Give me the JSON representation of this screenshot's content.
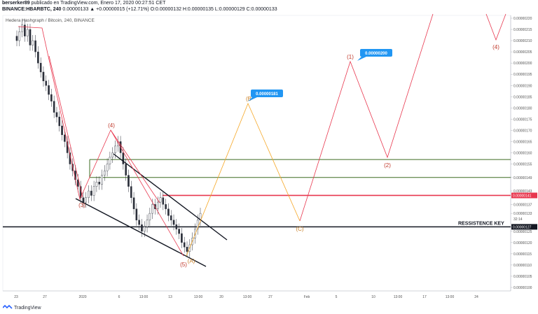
{
  "header": {
    "line1_user": "berserker89",
    "line1_rest": " publicado en TradingView.com, Enero 17, 2020 00:27:51 CET",
    "symbol": "BINANCE:HBARBTC, 240",
    "ohlc": "0.00000133 ▲ +0.00000015 (+12.71%) O:0.00000132 H:0.00000135 L:0.00000129 C:0.00000133"
  },
  "chart_title": "Hedera Hashgraph / Bitcoin, 240, BINANCE",
  "logo": {
    "text": "TradingView",
    "icon": "tradingview-logo-icon"
  },
  "colors": {
    "candle": "#2a2e39",
    "red": "#e8384f",
    "orange": "#f5a623",
    "green": "#3d6b21",
    "marker": "#2196f3",
    "axis_text": "#555",
    "wave_label_red": "#c0392b",
    "wave_label_orange": "#c9822b"
  },
  "chart_data": {
    "type": "line",
    "price_axis": {
      "ticks": [
        "0.00000220",
        "0.00000215",
        "0.00000210",
        "0.00000205",
        "0.00000200",
        "0.00000195",
        "0.00000190",
        "0.00000185",
        "0.00000180",
        "0.00000175",
        "0.00000170",
        "0.00000165",
        "0.00000160",
        "0.00000155",
        "0.00000149",
        "0.00000143",
        "0.00000137",
        "0.00000133",
        "0.00000125",
        "0.00000120",
        "0.00000115",
        "0.00000110",
        "0.00000105",
        "0.00000100"
      ],
      "extra_labels": [
        "32:14"
      ],
      "highlighted": [
        {
          "text": "0.00000141",
          "color": "#e8384f"
        },
        {
          "text": "0.00000127",
          "color": "#131722"
        }
      ]
    },
    "time_axis": {
      "ticks": [
        "23",
        "27",
        "2020",
        "6",
        "13:00",
        "13",
        "13:00",
        "20",
        "13:00",
        "27",
        "Feb",
        "5",
        "10",
        "13:00",
        "17",
        "13:00",
        "24"
      ]
    },
    "candles_close": [
      2.1e-06,
      2.14e-06,
      2.17e-06,
      2.12e-06,
      2.15e-06,
      2.08e-06,
      2.1e-06,
      2.05e-06,
      2e-06,
      1.96e-06,
      1.92e-06,
      1.9e-06,
      1.86e-06,
      1.83e-06,
      1.78e-06,
      1.76e-06,
      1.72e-06,
      1.68e-06,
      1.65e-06,
      1.6e-06,
      1.55e-06,
      1.52e-06,
      1.48e-06,
      1.45e-06,
      1.4e-06,
      1.38e-06,
      1.4e-06,
      1.43e-06,
      1.41e-06,
      1.45e-06,
      1.47e-06,
      1.46e-06,
      1.5e-06,
      1.52e-06,
      1.55e-06,
      1.58e-06,
      1.6e-06,
      1.63e-06,
      1.65e-06,
      1.6e-06,
      1.55e-06,
      1.5e-06,
      1.45e-06,
      1.4e-06,
      1.35e-06,
      1.3e-06,
      1.28e-06,
      1.25e-06,
      1.27e-06,
      1.3e-06,
      1.33e-06,
      1.37e-06,
      1.35e-06,
      1.38e-06,
      1.4e-06,
      1.37e-06,
      1.35e-06,
      1.32e-06,
      1.3e-06,
      1.28e-06,
      1.26e-06,
      1.24e-06,
      1.2e-06,
      1.18e-06,
      1.16e-06,
      1.19e-06,
      1.22e-06,
      1.26e-06,
      1.3e-06,
      1.33e-06
    ],
    "horizontal_levels": [
      {
        "price": 1.57e-06,
        "color": "#3d6b21"
      },
      {
        "price": 1.49e-06,
        "color": "#3d6b21"
      },
      {
        "price": 1.41e-06,
        "color": "#e8384f"
      },
      {
        "price": 1.27e-06,
        "color": "#131722",
        "label": "RESSISTENCE KEY"
      }
    ],
    "wave_labels": [
      {
        "text": "(3)",
        "color": "red"
      },
      {
        "text": "(4)",
        "color": "red"
      },
      {
        "text": "(5)",
        "color": "red"
      },
      {
        "text": "(A)",
        "color": "orange"
      },
      {
        "text": "(B",
        "color": "orange"
      },
      {
        "text": "(C)",
        "color": "orange"
      },
      {
        "text": "(1)",
        "color": "red"
      },
      {
        "text": "(2)",
        "color": "red"
      },
      {
        "text": "(4)",
        "color": "red"
      }
    ],
    "price_markers": [
      "0.00000181",
      "0.00000200"
    ]
  }
}
